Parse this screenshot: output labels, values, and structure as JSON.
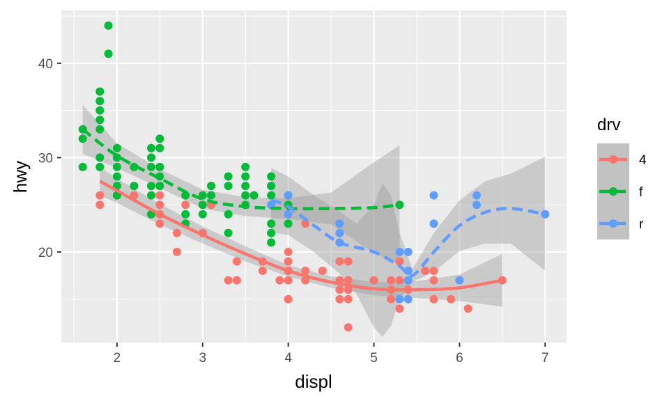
{
  "chart_data": {
    "type": "scatter",
    "title": "",
    "xlabel": "displ",
    "ylabel": "hwy",
    "xlim": [
      1.35,
      7.25
    ],
    "ylim": [
      10.4,
      45.6
    ],
    "x_ticks": [
      2,
      3,
      4,
      5,
      6,
      7
    ],
    "y_ticks": [
      20,
      30,
      40
    ],
    "grid": true,
    "legend": {
      "title": "drv",
      "position": "right",
      "entries": [
        "4",
        "f",
        "r"
      ]
    },
    "colors": {
      "4": "#F8766D",
      "f": "#00BA38",
      "r": "#619CFF",
      "band": "#999999",
      "panel": "#EBEBEB"
    },
    "series": [
      {
        "name": "4",
        "linestyle": "solid",
        "points": [
          [
            1.8,
            26
          ],
          [
            1.8,
            25
          ],
          [
            2.0,
            26
          ],
          [
            2.2,
            26
          ],
          [
            2.5,
            27
          ],
          [
            2.5,
            26
          ],
          [
            2.5,
            25
          ],
          [
            2.5,
            24
          ],
          [
            2.5,
            23
          ],
          [
            2.7,
            22
          ],
          [
            2.7,
            20
          ],
          [
            2.8,
            25
          ],
          [
            3.0,
            22
          ],
          [
            3.1,
            25
          ],
          [
            3.3,
            17
          ],
          [
            3.4,
            17
          ],
          [
            3.4,
            19
          ],
          [
            3.7,
            19
          ],
          [
            3.7,
            18
          ],
          [
            3.9,
            17
          ],
          [
            4.0,
            20
          ],
          [
            4.0,
            19
          ],
          [
            4.0,
            18
          ],
          [
            4.0,
            17
          ],
          [
            4.0,
            15
          ],
          [
            4.2,
            23
          ],
          [
            4.2,
            18
          ],
          [
            4.2,
            17
          ],
          [
            4.4,
            18
          ],
          [
            4.6,
            19
          ],
          [
            4.6,
            17
          ],
          [
            4.6,
            16
          ],
          [
            4.6,
            15
          ],
          [
            4.7,
            19
          ],
          [
            4.7,
            17
          ],
          [
            4.7,
            16
          ],
          [
            4.7,
            15
          ],
          [
            4.7,
            12
          ],
          [
            5.0,
            17
          ],
          [
            5.2,
            17
          ],
          [
            5.2,
            16
          ],
          [
            5.2,
            15
          ],
          [
            5.3,
            19
          ],
          [
            5.3,
            17
          ],
          [
            5.3,
            14
          ],
          [
            5.4,
            16
          ],
          [
            5.4,
            15
          ],
          [
            5.6,
            18
          ],
          [
            5.7,
            18
          ],
          [
            5.7,
            17
          ],
          [
            5.7,
            15
          ],
          [
            5.9,
            15
          ],
          [
            6.1,
            14
          ],
          [
            6.5,
            17
          ]
        ],
        "smooth": [
          [
            1.8,
            27.5
          ],
          [
            2.0,
            26.5
          ],
          [
            2.5,
            24.0
          ],
          [
            3.0,
            21.8
          ],
          [
            3.5,
            19.8
          ],
          [
            4.0,
            18.0
          ],
          [
            4.5,
            16.8
          ],
          [
            5.0,
            16.1
          ],
          [
            5.5,
            16.0
          ],
          [
            6.0,
            16.2
          ],
          [
            6.5,
            17.0
          ]
        ],
        "band_upper": [
          [
            1.8,
            29.0
          ],
          [
            2.0,
            27.8
          ],
          [
            2.5,
            25.1
          ],
          [
            3.0,
            22.7
          ],
          [
            3.5,
            20.6
          ],
          [
            4.0,
            18.6
          ],
          [
            4.5,
            17.4
          ],
          [
            5.0,
            16.8
          ],
          [
            5.5,
            16.9
          ],
          [
            6.0,
            17.6
          ],
          [
            6.5,
            19.8
          ]
        ],
        "band_lower": [
          [
            1.8,
            26.0
          ],
          [
            2.0,
            25.2
          ],
          [
            2.5,
            22.9
          ],
          [
            3.0,
            20.9
          ],
          [
            3.5,
            19.0
          ],
          [
            4.0,
            17.4
          ],
          [
            4.5,
            16.2
          ],
          [
            5.0,
            15.4
          ],
          [
            5.5,
            15.1
          ],
          [
            6.0,
            14.8
          ],
          [
            6.5,
            14.2
          ]
        ]
      },
      {
        "name": "f",
        "linestyle": "dashed",
        "points": [
          [
            1.6,
            33
          ],
          [
            1.6,
            32
          ],
          [
            1.6,
            29
          ],
          [
            1.8,
            37
          ],
          [
            1.8,
            36
          ],
          [
            1.8,
            35
          ],
          [
            1.8,
            34
          ],
          [
            1.8,
            33
          ],
          [
            1.8,
            30
          ],
          [
            1.8,
            29
          ],
          [
            1.9,
            44
          ],
          [
            1.9,
            41
          ],
          [
            2.0,
            31
          ],
          [
            2.0,
            30
          ],
          [
            2.0,
            29
          ],
          [
            2.0,
            28
          ],
          [
            2.0,
            27
          ],
          [
            2.0,
            26
          ],
          [
            2.2,
            29
          ],
          [
            2.2,
            27
          ],
          [
            2.4,
            31
          ],
          [
            2.4,
            30
          ],
          [
            2.4,
            29
          ],
          [
            2.4,
            27
          ],
          [
            2.4,
            26
          ],
          [
            2.4,
            24
          ],
          [
            2.5,
            32
          ],
          [
            2.5,
            31
          ],
          [
            2.5,
            29
          ],
          [
            2.5,
            28
          ],
          [
            2.5,
            27
          ],
          [
            2.8,
            26
          ],
          [
            2.8,
            24
          ],
          [
            2.8,
            23
          ],
          [
            3.0,
            26
          ],
          [
            3.0,
            25
          ],
          [
            3.0,
            24
          ],
          [
            3.1,
            27
          ],
          [
            3.1,
            26
          ],
          [
            3.3,
            28
          ],
          [
            3.3,
            27
          ],
          [
            3.3,
            24
          ],
          [
            3.3,
            22
          ],
          [
            3.5,
            29
          ],
          [
            3.5,
            28
          ],
          [
            3.5,
            27
          ],
          [
            3.5,
            26
          ],
          [
            3.5,
            25
          ],
          [
            3.6,
            26
          ],
          [
            3.8,
            28
          ],
          [
            3.8,
            27
          ],
          [
            3.8,
            26
          ],
          [
            3.8,
            23
          ],
          [
            3.8,
            22
          ],
          [
            3.8,
            21
          ],
          [
            4.0,
            26
          ],
          [
            4.0,
            25
          ],
          [
            4.0,
            23
          ],
          [
            5.3,
            25
          ]
        ],
        "smooth": [
          [
            1.6,
            33.0
          ],
          [
            2.0,
            30.2
          ],
          [
            2.5,
            27.8
          ],
          [
            3.0,
            25.6
          ],
          [
            3.5,
            24.8
          ],
          [
            4.0,
            24.6
          ],
          [
            4.5,
            24.6
          ],
          [
            5.0,
            24.7
          ],
          [
            5.3,
            25.0
          ]
        ],
        "band_upper": [
          [
            1.6,
            35.6
          ],
          [
            2.0,
            31.5
          ],
          [
            2.5,
            28.8
          ],
          [
            3.0,
            26.6
          ],
          [
            3.5,
            25.8
          ],
          [
            4.0,
            25.7
          ],
          [
            4.5,
            26.3
          ],
          [
            5.0,
            29.5
          ],
          [
            5.3,
            31.3
          ]
        ],
        "band_lower": [
          [
            1.6,
            30.4
          ],
          [
            2.0,
            28.9
          ],
          [
            2.5,
            26.8
          ],
          [
            3.0,
            24.6
          ],
          [
            3.5,
            23.8
          ],
          [
            4.0,
            23.5
          ],
          [
            4.5,
            22.9
          ],
          [
            5.0,
            19.9
          ],
          [
            5.3,
            18.7
          ]
        ]
      },
      {
        "name": "r",
        "linestyle": "dashed",
        "points": [
          [
            3.8,
            25
          ],
          [
            4.0,
            26
          ],
          [
            4.0,
            24
          ],
          [
            4.6,
            23
          ],
          [
            4.6,
            22
          ],
          [
            4.6,
            21
          ],
          [
            5.3,
            20
          ],
          [
            5.3,
            15
          ],
          [
            5.4,
            20
          ],
          [
            5.4,
            18
          ],
          [
            5.4,
            17
          ],
          [
            5.4,
            15
          ],
          [
            5.7,
            26
          ],
          [
            5.7,
            23
          ],
          [
            6.0,
            17
          ],
          [
            6.2,
            26
          ],
          [
            6.2,
            25
          ],
          [
            7.0,
            24
          ]
        ],
        "smooth": [
          [
            3.8,
            25.5
          ],
          [
            4.0,
            24.8
          ],
          [
            4.3,
            22.8
          ],
          [
            4.6,
            21.0
          ],
          [
            5.0,
            20.0
          ],
          [
            5.3,
            18.5
          ],
          [
            5.45,
            17.5
          ],
          [
            5.7,
            20.0
          ],
          [
            6.0,
            22.8
          ],
          [
            6.3,
            24.2
          ],
          [
            6.6,
            24.6
          ],
          [
            7.0,
            24.0
          ]
        ],
        "band_upper": [
          [
            3.8,
            28.9
          ],
          [
            4.0,
            28.0
          ],
          [
            4.3,
            26.0
          ],
          [
            4.6,
            24.3
          ],
          [
            4.8,
            23.0
          ],
          [
            5.0,
            25.0
          ],
          [
            5.1,
            27.3
          ],
          [
            5.2,
            26.0
          ],
          [
            5.3,
            22.0
          ],
          [
            5.45,
            18.2
          ],
          [
            5.7,
            22.0
          ],
          [
            6.0,
            25.5
          ],
          [
            6.3,
            27.5
          ],
          [
            6.6,
            28.3
          ],
          [
            7.0,
            30.1
          ]
        ],
        "band_lower": [
          [
            3.8,
            22.1
          ],
          [
            4.0,
            21.8
          ],
          [
            4.3,
            20.0
          ],
          [
            4.6,
            17.7
          ],
          [
            4.8,
            15.5
          ],
          [
            5.0,
            12.0
          ],
          [
            5.1,
            11.0
          ],
          [
            5.2,
            12.2
          ],
          [
            5.3,
            15.0
          ],
          [
            5.45,
            16.8
          ],
          [
            5.7,
            17.9
          ],
          [
            6.0,
            20.1
          ],
          [
            6.3,
            20.9
          ],
          [
            6.6,
            20.9
          ],
          [
            7.0,
            18.0
          ]
        ]
      }
    ]
  }
}
